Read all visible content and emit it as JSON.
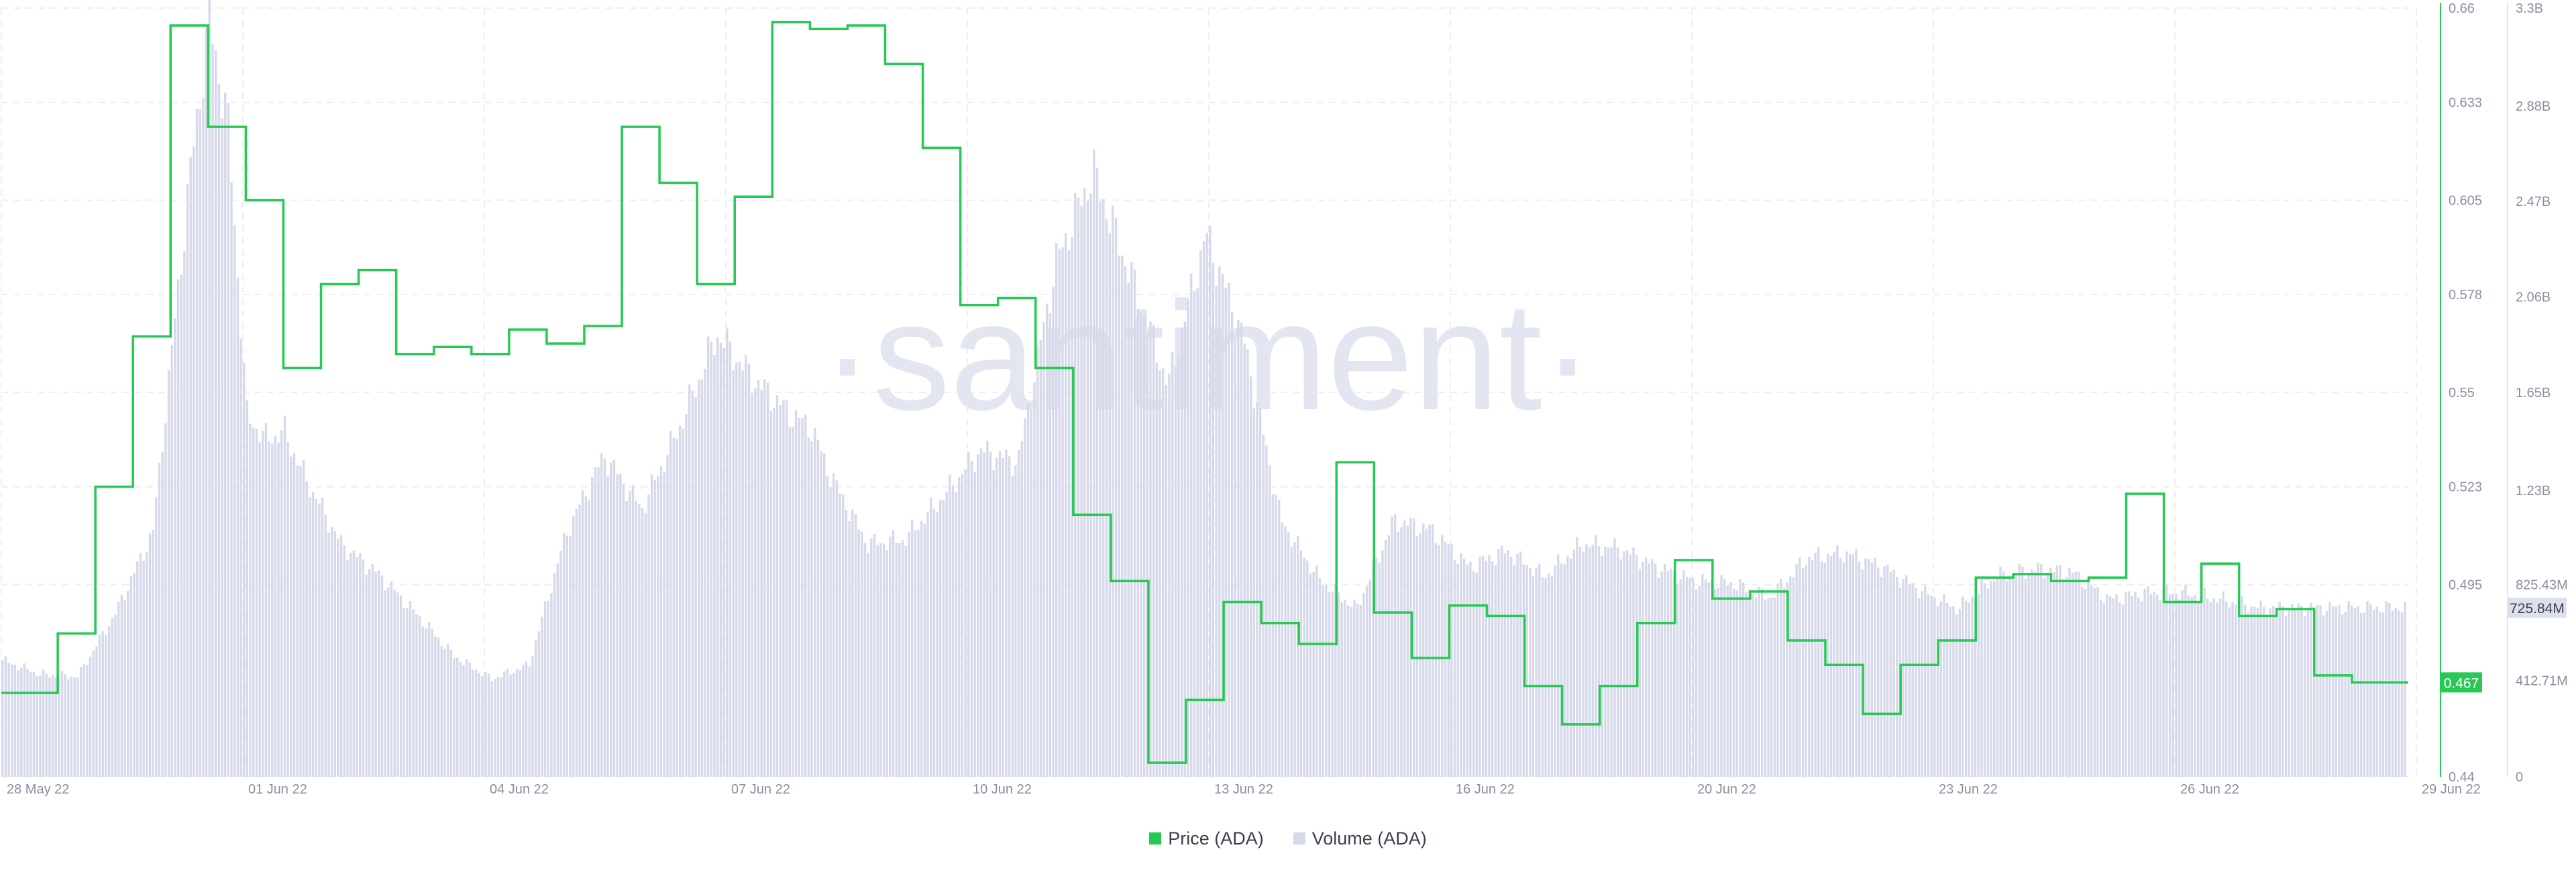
{
  "chart_data": {
    "type": "line",
    "watermark": "·santiment·",
    "x_ticks": [
      "28 May 22",
      "01 Jun 22",
      "04 Jun 22",
      "07 Jun 22",
      "10 Jun 22",
      "13 Jun 22",
      "16 Jun 22",
      "20 Jun 22",
      "23 Jun 22",
      "26 Jun 22",
      "29 Jun 22"
    ],
    "price_axis": {
      "ticks": [
        "0.66",
        "0.633",
        "0.605",
        "0.578",
        "0.55",
        "0.523",
        "0.495",
        "0.44"
      ],
      "ylim": [
        0.44,
        0.66
      ],
      "color": "#26c953"
    },
    "volume_axis": {
      "ticks": [
        "3.3B",
        "2.88B",
        "2.47B",
        "2.06B",
        "1.65B",
        "1.23B",
        "825.43M",
        "412.71M",
        "0"
      ],
      "ylim": [
        0,
        3300000000
      ],
      "color": "#8a8fa3"
    },
    "current_price_label": "0.467",
    "current_price": 0.467,
    "current_volume_label": "725.84M",
    "current_volume": 725840000,
    "x_range_days": [
      0,
      32
    ],
    "series": [
      {
        "name": "Price (ADA)",
        "kind": "step",
        "color": "#26c953",
        "x_days": [
          0,
          0.75,
          1.25,
          1.75,
          2.25,
          2.75,
          3.25,
          3.75,
          4.25,
          4.75,
          5.25,
          5.75,
          6.25,
          6.75,
          7.25,
          7.75,
          8.25,
          8.75,
          9.25,
          9.75,
          10.25,
          10.75,
          11.25,
          11.75,
          12.25,
          12.75,
          13.25,
          13.75,
          14.25,
          14.75,
          15.25,
          15.75,
          16.25,
          16.75,
          17.25,
          17.75,
          18.25,
          18.75,
          19.25,
          19.75,
          20.25,
          20.75,
          21.25,
          21.75,
          22.25,
          22.75,
          23.25,
          23.75,
          24.25,
          24.75,
          25.25,
          25.75,
          26.25,
          26.75,
          27.25,
          27.75,
          28.25,
          28.75,
          29.25,
          29.75,
          30.25,
          30.75,
          31.25,
          31.75,
          32
        ],
        "values": [
          0.464,
          0.481,
          0.523,
          0.566,
          0.655,
          0.626,
          0.605,
          0.557,
          0.581,
          0.585,
          0.561,
          0.563,
          0.561,
          0.568,
          0.564,
          0.569,
          0.626,
          0.61,
          0.581,
          0.606,
          0.656,
          0.654,
          0.655,
          0.644,
          0.62,
          0.575,
          0.577,
          0.557,
          0.515,
          0.496,
          0.444,
          0.462,
          0.49,
          0.484,
          0.478,
          0.53,
          0.487,
          0.474,
          0.489,
          0.486,
          0.466,
          0.455,
          0.466,
          0.484,
          0.502,
          0.491,
          0.493,
          0.479,
          0.472,
          0.458,
          0.472,
          0.479,
          0.497,
          0.498,
          0.496,
          0.497,
          0.521,
          0.49,
          0.501,
          0.486,
          0.488,
          0.469,
          0.467,
          0.467,
          0.467
        ]
      },
      {
        "name": "Volume (ADA)",
        "kind": "bars",
        "color": "#d6d9ea",
        "x_days": [
          0,
          0.5,
          1.0,
          1.5,
          2.0,
          2.5,
          2.75,
          3.0,
          3.25,
          3.5,
          3.75,
          4.0,
          4.5,
          5.0,
          5.5,
          6.0,
          6.5,
          7.0,
          7.5,
          8.0,
          8.5,
          9.0,
          9.5,
          10.0,
          10.5,
          10.75,
          11.0,
          11.5,
          12.0,
          12.5,
          13.0,
          13.5,
          14.0,
          14.5,
          15.0,
          15.5,
          16.0,
          16.5,
          17.0,
          17.5,
          18.0,
          18.5,
          19.0,
          19.5,
          20.0,
          20.5,
          21.0,
          21.5,
          22.0,
          22.5,
          23.0,
          23.5,
          24.0,
          24.5,
          25.0,
          25.5,
          26.0,
          26.5,
          27.0,
          27.5,
          28.0,
          28.5,
          29.0,
          29.5,
          30.0,
          30.5,
          31.0,
          31.5,
          32.0
        ],
        "values": [
          500000000,
          440000000,
          430000000,
          700000000,
          1050000000,
          2600000000,
          3250000000,
          2800000000,
          1550000000,
          1450000000,
          1480000000,
          1300000000,
          1000000000,
          870000000,
          700000000,
          520000000,
          420000000,
          480000000,
          1050000000,
          1380000000,
          1150000000,
          1500000000,
          1900000000,
          1700000000,
          1550000000,
          1500000000,
          1300000000,
          1000000000,
          1020000000,
          1200000000,
          1400000000,
          1350000000,
          2200000000,
          2600000000,
          2150000000,
          1680000000,
          2330000000,
          1880000000,
          1100000000,
          850000000,
          720000000,
          1100000000,
          1060000000,
          900000000,
          970000000,
          860000000,
          1000000000,
          980000000,
          900000000,
          840000000,
          830000000,
          770000000,
          940000000,
          960000000,
          900000000,
          800000000,
          720000000,
          860000000,
          890000000,
          880000000,
          760000000,
          790000000,
          790000000,
          760000000,
          725840000,
          725840000,
          725840000,
          725840000,
          725840000
        ]
      }
    ],
    "legend": [
      "Price (ADA)",
      "Volume (ADA)"
    ],
    "legend_placement": "bottom-center",
    "grid": true
  }
}
